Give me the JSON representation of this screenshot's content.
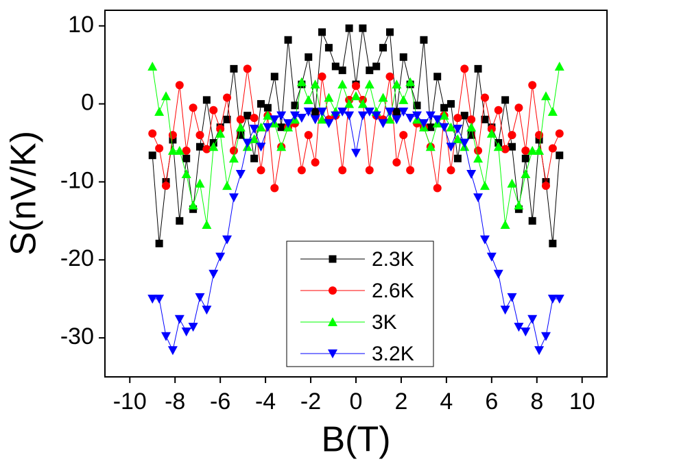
{
  "chart_data": {
    "type": "line",
    "xlabel": "B(T)",
    "ylabel": "S(nV/K)",
    "xlim": [
      -11.1,
      11.1
    ],
    "ylim": [
      -35,
      12
    ],
    "xticks": [
      -10,
      -8,
      -6,
      -4,
      -2,
      0,
      2,
      4,
      6,
      8,
      10
    ],
    "yticks": [
      -30,
      -20,
      -10,
      0,
      10
    ],
    "legend": "bottom",
    "x": [
      -9,
      -8.7,
      -8.4,
      -8.1,
      -7.8,
      -7.5,
      -7.2,
      -6.9,
      -6.6,
      -6.3,
      -6,
      -5.7,
      -5.4,
      -5.1,
      -4.8,
      -4.5,
      -4.2,
      -3.9,
      -3.6,
      -3.3,
      -3,
      -2.7,
      -2.4,
      -2.1,
      -1.8,
      -1.5,
      -1.2,
      -0.9,
      -0.6,
      -0.3,
      0,
      0.3,
      0.6,
      0.9,
      1.2,
      1.5,
      1.8,
      2.1,
      2.4,
      2.7,
      3,
      3.3,
      3.6,
      3.9,
      4.2,
      4.5,
      4.8,
      5.1,
      5.4,
      5.7,
      6,
      6.3,
      6.6,
      6.9,
      7.2,
      7.5,
      7.8,
      8.1,
      8.4,
      8.7,
      9
    ],
    "series": [
      {
        "name": "2.3K",
        "color": "#000000",
        "marker": "square",
        "values": [
          -6.6,
          -17.9,
          -10,
          -4.6,
          -15,
          -7,
          -13.5,
          -5.5,
          0.5,
          -5,
          -3,
          -2,
          4.5,
          -4,
          -1.5,
          -7,
          0,
          -0.5,
          3.5,
          -3,
          8.2,
          -0.2,
          2.5,
          6,
          -1,
          9.2,
          7.2,
          4.8,
          4.3,
          9.7,
          2.5,
          9.7,
          4.3,
          4.8,
          7.2,
          9.2,
          -1,
          6,
          2.5,
          -0.2,
          8.2,
          -3,
          3.5,
          -0.5,
          0,
          -7,
          -1.5,
          -4,
          4.5,
          -2,
          -3,
          -5,
          0.5,
          -5.5,
          -13.5,
          -7,
          -15,
          -4.6,
          -10,
          -17.9,
          -6.6
        ]
      },
      {
        "name": "2.6K",
        "color": "#ff0000",
        "marker": "circle",
        "values": [
          -3.8,
          -5.7,
          -10.5,
          -4,
          2.4,
          -6,
          -0.5,
          -4,
          -5.8,
          -0.8,
          -3.2,
          0.8,
          -6,
          -2,
          4.5,
          -1.8,
          -8.5,
          -1.5,
          -10.8,
          -5.5,
          -3,
          -2.5,
          -8.5,
          -4,
          -7.5,
          3.5,
          -2,
          -1.5,
          -8.5,
          0.5,
          2.3,
          0.5,
          -8.5,
          -1.5,
          -2,
          3.5,
          -7.5,
          -4,
          -8.5,
          -2.5,
          -3,
          -5.5,
          -10.8,
          -1.5,
          -8.5,
          -1.8,
          4.5,
          -2,
          -6,
          0.8,
          -3.2,
          -0.8,
          -5.8,
          -4,
          -0.5,
          -6,
          2.4,
          -4,
          -10.5,
          -5.7,
          -3.8
        ]
      },
      {
        "name": "3K",
        "color": "#00ff00",
        "marker": "triangle-up",
        "values": [
          4.8,
          -1,
          1,
          -6,
          -6,
          -9,
          -13,
          -10.2,
          -15.5,
          -5.5,
          -3.8,
          -10.5,
          -7,
          -3,
          -5.5,
          -4.5,
          -3,
          -1.5,
          -2.5,
          -5.5,
          -3,
          -2,
          2.8,
          0.5,
          2.5,
          -2,
          0.8,
          -1,
          2.5,
          0,
          1,
          0,
          2.5,
          -1,
          0.8,
          -2,
          2.5,
          0.5,
          2.8,
          -2,
          -3,
          -5.5,
          -2.5,
          -1.5,
          -3,
          -4.5,
          -5.5,
          -3,
          -7,
          -10.5,
          -3.8,
          -5.5,
          -15.5,
          -10.2,
          -13,
          -9,
          -6,
          -6,
          1,
          -1,
          4.8
        ]
      },
      {
        "name": "3.2K",
        "color": "#0000ff",
        "marker": "triangle-down",
        "values": [
          -25,
          -25,
          -29.8,
          -31.6,
          -27.6,
          -29.2,
          -28.6,
          -24.8,
          -26.4,
          -21.8,
          -19.6,
          -17.4,
          -12,
          -9,
          -5,
          -3.2,
          -5.5,
          -3,
          -2,
          -1.5,
          -2.5,
          -1.5,
          -1.8,
          -1,
          -2,
          -1,
          -2.5,
          -1.5,
          -1,
          -1.5,
          -6.3,
          -1.5,
          -1,
          -1.5,
          -2.5,
          -1,
          -2,
          -1,
          -1.8,
          -1.5,
          -2.5,
          -1.5,
          -2,
          -3,
          -5.5,
          -3.2,
          -5,
          -9,
          -12,
          -17.4,
          -19.6,
          -21.8,
          -26.4,
          -24.8,
          -28.6,
          -29.2,
          -27.6,
          -31.6,
          -29.8,
          -25,
          -25
        ]
      }
    ]
  }
}
